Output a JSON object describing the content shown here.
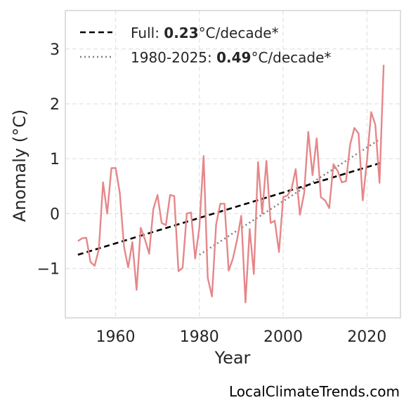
{
  "chart_data": {
    "type": "line",
    "xlabel": "Year",
    "ylabel": "Anomaly (°C)",
    "xlim": [
      1948,
      2028
    ],
    "ylim": [
      -1.9,
      3.7
    ],
    "x_ticks": [
      1960,
      1980,
      2000,
      2020
    ],
    "y_ticks": [
      -1,
      0,
      1,
      2,
      3
    ],
    "y_tick_labels": [
      "−1",
      "0",
      "1",
      "2",
      "3"
    ],
    "grid": true,
    "legend_position": "top-left",
    "colors": {
      "series": "#e5878a",
      "full_trend": "#000000",
      "recent_trend": "#808080",
      "grid": "#e2e2e2",
      "frame": "#cccccc"
    },
    "legend": [
      {
        "prefix": "Full: ",
        "value": "0.23",
        "suffix": "°C/decade*",
        "style": "dashed"
      },
      {
        "prefix": "1980-2025: ",
        "value": "0.49",
        "suffix": "°C/decade*",
        "style": "dotted"
      }
    ],
    "series": [
      {
        "x": [
          1951,
          1952,
          1953,
          1954,
          1955,
          1956,
          1957,
          1958,
          1959,
          1960,
          1961,
          1962,
          1963,
          1964,
          1965,
          1966,
          1967,
          1968,
          1969,
          1970,
          1971,
          1972,
          1973,
          1974,
          1975,
          1976,
          1977,
          1978,
          1979,
          1980,
          1981,
          1982,
          1983,
          1984,
          1985,
          1986,
          1987,
          1988,
          1989,
          1990,
          1991,
          1992,
          1993,
          1994,
          1995,
          1996,
          1997,
          1998,
          1999,
          2000,
          2001,
          2002,
          2003,
          2004,
          2005,
          2006,
          2007,
          2008,
          2009,
          2010,
          2011,
          2012,
          2013,
          2014,
          2015,
          2016,
          2017,
          2018,
          2019,
          2020,
          2021,
          2022,
          2023,
          2024
        ],
        "values": [
          -0.5,
          -0.45,
          -0.44,
          -0.88,
          -0.95,
          -0.65,
          0.57,
          0.0,
          0.83,
          0.83,
          0.38,
          -0.6,
          -0.98,
          -0.52,
          -1.39,
          -0.26,
          -0.47,
          -0.73,
          0.08,
          0.34,
          -0.17,
          -0.21,
          0.34,
          0.32,
          -1.05,
          -0.99,
          0.0,
          0.02,
          -0.82,
          -0.25,
          1.05,
          -1.17,
          -1.51,
          -0.2,
          0.18,
          0.18,
          -1.04,
          -0.82,
          -0.47,
          -0.04,
          -1.62,
          -0.28,
          -1.1,
          0.94,
          0.0,
          0.96,
          -0.17,
          -0.13,
          -0.7,
          0.3,
          0.33,
          0.45,
          0.81,
          -0.02,
          0.37,
          1.49,
          0.7,
          1.37,
          0.3,
          0.24,
          0.1,
          0.9,
          0.78,
          0.57,
          0.59,
          1.26,
          1.56,
          1.46,
          0.24,
          0.96,
          1.85,
          1.62,
          0.56,
          2.71
        ]
      }
    ],
    "trend_full": {
      "x": [
        1951,
        2024
      ],
      "y": [
        -0.75,
        0.94
      ]
    },
    "trend_recent": {
      "x": [
        1980,
        2024
      ],
      "y": [
        -0.75,
        1.4
      ]
    }
  },
  "watermark": "LocalClimateTrends.com"
}
